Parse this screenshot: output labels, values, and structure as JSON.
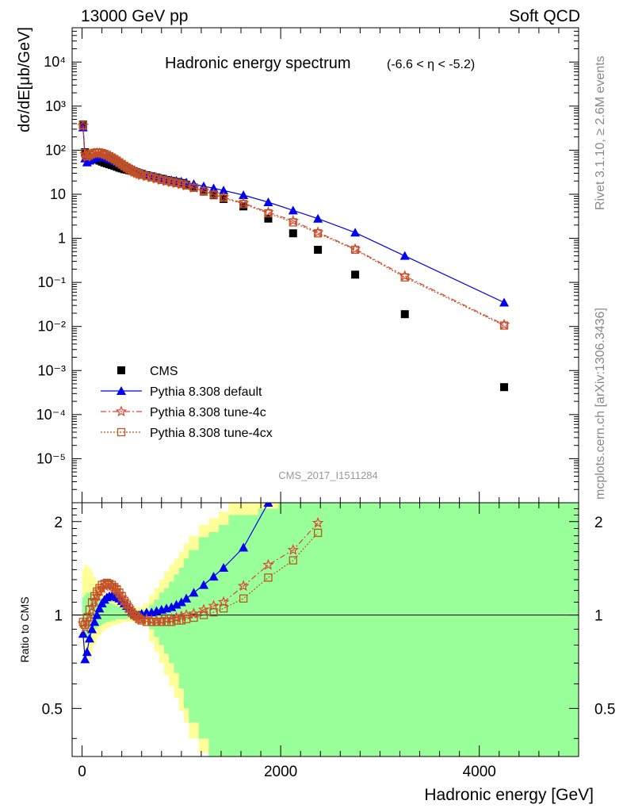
{
  "header": {
    "left": "13000 GeV pp",
    "right": "Soft QCD"
  },
  "side_labels": {
    "rivet": "Rivet 3.1.10, ≥ 2.6M events",
    "mcplots": "mcplots.cern.ch [arXiv:1306.3436]"
  },
  "chart_data": [
    {
      "type": "scatter",
      "panel": "main",
      "title": "Hadronic energy spectrum",
      "title_suffix": "(-6.6 < η < -5.2)",
      "watermark": "CMS_2017_I1511284",
      "xlabel": "Hadronic energy [GeV]",
      "ylabel": "dσ/dE[μb/GeV]",
      "xlim": [
        -100,
        5000
      ],
      "ylim": [
        1e-06,
        60000
      ],
      "yscale": "log",
      "y_tick_labels": [
        "10⁻⁵",
        "10⁻⁴",
        "10⁻³",
        "10⁻²",
        "10⁻¹",
        "1",
        "10",
        "10²",
        "10³",
        "10⁴"
      ],
      "legend_position": "bottom-left",
      "series": [
        {
          "name": "CMS",
          "color": "#000000",
          "marker": "square",
          "line": "none",
          "x": [
            10,
            30,
            50,
            75,
            100,
            125,
            150,
            175,
            200,
            225,
            250,
            275,
            300,
            325,
            350,
            375,
            400,
            425,
            450,
            475,
            500,
            525,
            550,
            575,
            600,
            650,
            700,
            750,
            800,
            850,
            900,
            950,
            1000,
            1050,
            1125,
            1225,
            1325,
            1425,
            1625,
            1875,
            2125,
            2375,
            2750,
            3250,
            4250
          ],
          "y": [
            380,
            90,
            70,
            69,
            67,
            64,
            61,
            58,
            55,
            52,
            50,
            48,
            46,
            44,
            42,
            40,
            38.5,
            37,
            36,
            35,
            34,
            33,
            31.5,
            30,
            29,
            27,
            25.5,
            24,
            22.5,
            21,
            20,
            19,
            18,
            16.5,
            14.3,
            11.5,
            9.5,
            7.8,
            5.3,
            2.8,
            1.3,
            0.55,
            0.15,
            0.019,
            0.00042
          ]
        },
        {
          "name": "Pythia 8.308 default",
          "color": "#0000ee",
          "marker": "triangle",
          "line": "solid",
          "x": [
            10,
            30,
            50,
            75,
            100,
            125,
            150,
            175,
            200,
            225,
            250,
            275,
            300,
            325,
            350,
            375,
            400,
            425,
            450,
            475,
            500,
            525,
            550,
            575,
            600,
            650,
            700,
            750,
            800,
            850,
            900,
            950,
            1000,
            1050,
            1125,
            1225,
            1325,
            1425,
            1625,
            1875,
            2125,
            2375,
            2750,
            3250,
            4250
          ],
          "y": [
            330,
            65,
            53,
            58,
            63,
            67,
            69,
            70,
            70,
            68,
            67,
            64,
            61,
            58,
            55,
            52,
            48.5,
            46,
            43,
            40.5,
            38,
            35.5,
            33,
            31,
            29.5,
            27.5,
            26,
            24.5,
            23,
            22,
            21,
            20.3,
            19.5,
            18.5,
            17,
            15.2,
            13.7,
            12.2,
            9.6,
            6.6,
            4.3,
            2.8,
            1.35,
            0.4,
            0.035
          ]
        },
        {
          "name": "Pythia 8.308 tune-4c",
          "color": "#dd4433",
          "marker": "star",
          "line": "dashdot",
          "x": [
            10,
            30,
            50,
            75,
            100,
            125,
            150,
            175,
            200,
            225,
            250,
            275,
            300,
            325,
            350,
            375,
            400,
            425,
            450,
            475,
            500,
            525,
            550,
            575,
            600,
            650,
            700,
            750,
            800,
            850,
            900,
            950,
            1000,
            1050,
            1125,
            1225,
            1325,
            1425,
            1625,
            1875,
            2125,
            2375,
            2750,
            3250,
            4250
          ],
          "y": [
            360,
            82,
            70,
            76,
            81,
            84,
            86,
            85,
            83,
            80,
            76,
            71,
            67,
            62,
            57,
            52,
            47.5,
            43.5,
            40,
            37,
            34.5,
            32,
            30,
            28.5,
            27,
            25.5,
            24,
            22.5,
            21,
            19.8,
            18.8,
            17.8,
            16.8,
            15.7,
            14,
            11.8,
            10,
            8.5,
            6.3,
            3.9,
            2.5,
            1.37,
            0.57,
            0.14,
            0.011
          ]
        },
        {
          "name": "Pythia 8.308 tune-4cx",
          "color": "#bb5522",
          "marker": "open-square",
          "line": "dotted",
          "x": [
            10,
            30,
            50,
            75,
            100,
            125,
            150,
            175,
            200,
            225,
            250,
            275,
            300,
            325,
            350,
            375,
            400,
            425,
            450,
            475,
            500,
            525,
            550,
            575,
            600,
            650,
            700,
            750,
            800,
            850,
            900,
            950,
            1000,
            1050,
            1125,
            1225,
            1325,
            1425,
            1625,
            1875,
            2125,
            2375,
            2750,
            3250,
            4250
          ],
          "y": [
            365,
            85,
            73,
            79,
            84,
            87,
            89,
            88,
            86,
            82,
            78,
            73,
            68,
            63,
            58,
            53,
            48.5,
            44,
            40.5,
            37.5,
            35,
            32.5,
            30.5,
            29,
            27.5,
            25.8,
            24.2,
            22.8,
            21.2,
            20,
            19,
            18,
            17,
            15.8,
            14,
            11.8,
            9.8,
            8.3,
            6.0,
            3.7,
            2.3,
            1.3,
            0.55,
            0.13,
            0.0105
          ]
        }
      ]
    },
    {
      "type": "line",
      "panel": "ratio",
      "ylabel": "Ratio to CMS",
      "xlabel": "Hadronic energy [GeV]",
      "xlim": [
        -100,
        5000
      ],
      "ylim": [
        0.35,
        2.3
      ],
      "yscale": "log",
      "y_ticks": [
        0.5,
        1,
        2
      ],
      "y_tick_labels": [
        "0.5",
        "1",
        "2"
      ],
      "x_ticks": [
        0,
        2000,
        4000
      ],
      "x_tick_labels": [
        "0",
        "2000",
        "4000"
      ],
      "band_colors": {
        "stat": "#99ff99",
        "total": "#ffff99"
      },
      "band_x": [
        0,
        20,
        40,
        60,
        90,
        110,
        140,
        160,
        190,
        210,
        240,
        260,
        290,
        310,
        340,
        360,
        390,
        410,
        440,
        460,
        490,
        510,
        540,
        560,
        590,
        610,
        675,
        725,
        775,
        825,
        875,
        925,
        975,
        1025,
        1075,
        1175,
        1275,
        1375,
        1475,
        1775,
        1975,
        2275,
        2475,
        3025,
        3525,
        5000
      ],
      "band_inner_lo": [
        0.87,
        0.85,
        0.84,
        0.86,
        0.88,
        0.9,
        0.91,
        0.92,
        0.93,
        0.94,
        0.95,
        0.95,
        0.96,
        0.96,
        0.97,
        0.97,
        0.97,
        0.97,
        0.97,
        0.98,
        0.98,
        0.98,
        0.98,
        0.98,
        0.98,
        0.97,
        0.9,
        0.85,
        0.8,
        0.75,
        0.7,
        0.65,
        0.58,
        0.5,
        0.45,
        0.4,
        0.35,
        0.3,
        0.3,
        0.3,
        0.3,
        0.3,
        0.3,
        0.3,
        0.3
      ],
      "band_inner_hi": [
        1.14,
        1.16,
        1.18,
        1.18,
        1.17,
        1.16,
        1.15,
        1.14,
        1.13,
        1.12,
        1.11,
        1.1,
        1.09,
        1.08,
        1.07,
        1.06,
        1.05,
        1.05,
        1.04,
        1.04,
        1.03,
        1.03,
        1.03,
        1.03,
        1.03,
        1.04,
        1.08,
        1.12,
        1.18,
        1.22,
        1.28,
        1.35,
        1.42,
        1.52,
        1.62,
        1.78,
        1.85,
        1.95,
        2.1,
        2.2,
        2.35,
        2.5,
        2.5,
        2.5,
        2.5
      ],
      "band_outer_lo": [
        0.85,
        0.75,
        0.7,
        0.72,
        0.76,
        0.8,
        0.83,
        0.86,
        0.88,
        0.89,
        0.91,
        0.91,
        0.92,
        0.93,
        0.93,
        0.94,
        0.94,
        0.95,
        0.95,
        0.95,
        0.95,
        0.95,
        0.95,
        0.95,
        0.95,
        0.93,
        0.82,
        0.76,
        0.7,
        0.64,
        0.59,
        0.54,
        0.49,
        0.45,
        0.4,
        0.36,
        0.32,
        0.3,
        0.3,
        0.3,
        0.3,
        0.3,
        0.3,
        0.3,
        0.3
      ],
      "band_outer_hi": [
        1.4,
        1.45,
        1.45,
        1.42,
        1.38,
        1.33,
        1.28,
        1.25,
        1.22,
        1.19,
        1.17,
        1.16,
        1.14,
        1.12,
        1.11,
        1.1,
        1.09,
        1.08,
        1.07,
        1.07,
        1.06,
        1.06,
        1.06,
        1.06,
        1.06,
        1.09,
        1.16,
        1.22,
        1.3,
        1.38,
        1.45,
        1.52,
        1.6,
        1.7,
        1.8,
        1.95,
        2.05,
        2.15,
        2.3,
        2.5,
        2.5,
        2.5,
        2.5,
        2.5,
        2.5
      ],
      "series": [
        {
          "name": "Pythia 8.308 default",
          "color": "#0000ee",
          "marker": "triangle",
          "line": "solid",
          "x": [
            10,
            30,
            50,
            75,
            100,
            125,
            150,
            175,
            200,
            225,
            250,
            275,
            300,
            325,
            350,
            375,
            400,
            425,
            450,
            475,
            500,
            525,
            550,
            575,
            600,
            650,
            700,
            750,
            800,
            850,
            900,
            950,
            1000,
            1050,
            1125,
            1225,
            1325,
            1425,
            1625,
            1875
          ],
          "y": [
            0.87,
            0.72,
            0.76,
            0.84,
            0.9,
            0.95,
            1.0,
            1.05,
            1.09,
            1.12,
            1.14,
            1.15,
            1.15,
            1.15,
            1.14,
            1.13,
            1.11,
            1.09,
            1.07,
            1.05,
            1.03,
            1.01,
            1.0,
            1.0,
            1.01,
            1.02,
            1.02,
            1.03,
            1.04,
            1.05,
            1.06,
            1.08,
            1.1,
            1.13,
            1.18,
            1.25,
            1.33,
            1.42,
            1.65,
            2.3
          ]
        },
        {
          "name": "Pythia 8.308 tune-4c",
          "color": "#dd4433",
          "marker": "star",
          "line": "dashdot",
          "x": [
            10,
            30,
            50,
            75,
            100,
            125,
            150,
            175,
            200,
            225,
            250,
            275,
            300,
            325,
            350,
            375,
            400,
            425,
            450,
            475,
            500,
            525,
            550,
            575,
            600,
            650,
            700,
            750,
            800,
            850,
            900,
            950,
            1000,
            1050,
            1125,
            1225,
            1325,
            1425,
            1625,
            1875,
            2125,
            2375
          ],
          "y": [
            0.94,
            0.91,
            0.95,
            1.0,
            1.06,
            1.11,
            1.15,
            1.19,
            1.22,
            1.24,
            1.25,
            1.25,
            1.24,
            1.22,
            1.2,
            1.17,
            1.14,
            1.11,
            1.08,
            1.05,
            1.02,
            1.0,
            0.99,
            0.98,
            0.97,
            0.97,
            0.96,
            0.96,
            0.96,
            0.97,
            0.97,
            0.98,
            0.99,
            1.0,
            1.01,
            1.04,
            1.07,
            1.1,
            1.24,
            1.45,
            1.62,
            1.98
          ]
        },
        {
          "name": "Pythia 8.308 tune-4cx",
          "color": "#bb5522",
          "marker": "open-square",
          "line": "dotted",
          "x": [
            10,
            30,
            50,
            75,
            100,
            125,
            150,
            175,
            200,
            225,
            250,
            275,
            300,
            325,
            350,
            375,
            400,
            425,
            450,
            475,
            500,
            525,
            550,
            575,
            600,
            650,
            700,
            750,
            800,
            850,
            900,
            950,
            1000,
            1050,
            1125,
            1225,
            1325,
            1425,
            1625,
            1875,
            2125,
            2375
          ],
          "y": [
            0.95,
            0.93,
            0.98,
            1.04,
            1.1,
            1.15,
            1.19,
            1.22,
            1.25,
            1.26,
            1.27,
            1.26,
            1.25,
            1.23,
            1.21,
            1.18,
            1.15,
            1.11,
            1.08,
            1.05,
            1.02,
            1.0,
            0.99,
            0.97,
            0.96,
            0.95,
            0.95,
            0.95,
            0.95,
            0.95,
            0.95,
            0.96,
            0.96,
            0.97,
            0.98,
            1.0,
            1.02,
            1.05,
            1.13,
            1.32,
            1.5,
            1.84
          ]
        }
      ]
    }
  ]
}
